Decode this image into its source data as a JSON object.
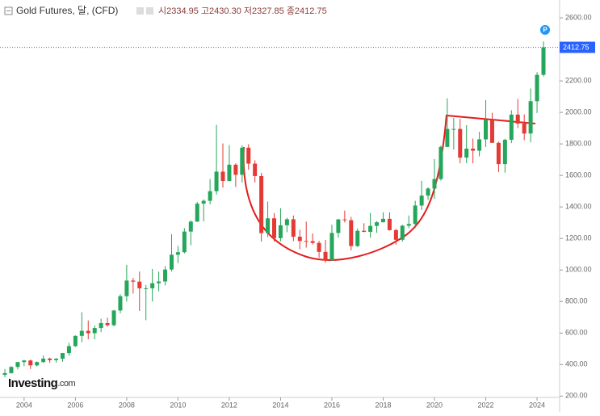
{
  "chart_data": {
    "type": "candlestick",
    "title": "Gold Futures, 달, (CFD)",
    "header_ohlc": "시2334.95 고2430.30 저2327.85 종2412.75",
    "logo": "Investing",
    "logo_suffix": ".com",
    "x": [
      2003.25,
      2003.5,
      2003.75,
      2004.0,
      2004.25,
      2004.5,
      2004.75,
      2005.0,
      2005.25,
      2005.5,
      2005.75,
      2006.0,
      2006.25,
      2006.5,
      2006.75,
      2007.0,
      2007.25,
      2007.5,
      2007.75,
      2008.0,
      2008.25,
      2008.5,
      2008.75,
      2009.0,
      2009.25,
      2009.5,
      2009.75,
      2010.0,
      2010.25,
      2010.5,
      2010.75,
      2011.0,
      2011.25,
      2011.5,
      2011.75,
      2012.0,
      2012.25,
      2012.5,
      2012.75,
      2013.0,
      2013.25,
      2013.5,
      2013.75,
      2014.0,
      2014.25,
      2014.5,
      2014.75,
      2015.0,
      2015.25,
      2015.5,
      2015.75,
      2016.0,
      2016.25,
      2016.5,
      2016.75,
      2017.0,
      2017.25,
      2017.5,
      2017.75,
      2018.0,
      2018.25,
      2018.5,
      2018.75,
      2019.0,
      2019.25,
      2019.5,
      2019.75,
      2020.0,
      2020.25,
      2020.5,
      2020.75,
      2021.0,
      2021.25,
      2021.5,
      2021.75,
      2022.0,
      2022.25,
      2022.5,
      2022.75,
      2023.0,
      2023.25,
      2023.5,
      2023.75,
      2024.0,
      2024.25
    ],
    "open": [
      335,
      346,
      385,
      416,
      426,
      395,
      416,
      438,
      428,
      437,
      473,
      517,
      582,
      614,
      599,
      632,
      663,
      650,
      743,
      834,
      933,
      926,
      884,
      884,
      916,
      927,
      1003,
      1097,
      1113,
      1244,
      1307,
      1421,
      1439,
      1500,
      1624,
      1565,
      1668,
      1604,
      1776,
      1675,
      1596,
      1234,
      1328,
      1202,
      1284,
      1322,
      1211,
      1184,
      1183,
      1172,
      1115,
      1061,
      1235,
      1321,
      1316,
      1152,
      1249,
      1242,
      1280,
      1303,
      1325,
      1253,
      1192,
      1281,
      1292,
      1409,
      1472,
      1517,
      1577,
      1781,
      1895,
      1895,
      1713,
      1770,
      1757,
      1829,
      1954,
      1807,
      1672,
      1826,
      1986,
      1929,
      1866,
      2071,
      2238
    ],
    "high": [
      372,
      390,
      417,
      430,
      432,
      420,
      457,
      445,
      441,
      474,
      538,
      585,
      732,
      680,
      648,
      691,
      697,
      747,
      846,
      1033,
      950,
      990,
      905,
      1007,
      990,
      1024,
      1227,
      1153,
      1266,
      1315,
      1432,
      1448,
      1577,
      1921,
      1803,
      1792,
      1677,
      1790,
      1798,
      1696,
      1616,
      1434,
      1361,
      1392,
      1332,
      1346,
      1255,
      1307,
      1232,
      1185,
      1191,
      1287,
      1325,
      1377,
      1337,
      1264,
      1297,
      1362,
      1310,
      1366,
      1365,
      1262,
      1287,
      1346,
      1439,
      1566,
      1525,
      1704,
      1789,
      2089,
      1965,
      1959,
      1919,
      1834,
      1877,
      2078,
      1998,
      1814,
      1833,
      2014,
      2085,
      1987,
      2152,
      2255,
      2450
    ],
    "low": [
      320,
      342,
      370,
      390,
      372,
      388,
      411,
      411,
      413,
      418,
      456,
      512,
      542,
      560,
      560,
      606,
      640,
      642,
      725,
      800,
      850,
      740,
      681,
      800,
      865,
      902,
      990,
      1044,
      1105,
      1157,
      1305,
      1309,
      1417,
      1478,
      1522,
      1563,
      1527,
      1555,
      1636,
      1555,
      1180,
      1208,
      1180,
      1182,
      1240,
      1183,
      1131,
      1142,
      1162,
      1077,
      1046,
      1058,
      1205,
      1302,
      1124,
      1146,
      1240,
      1205,
      1236,
      1302,
      1250,
      1160,
      1180,
      1266,
      1266,
      1381,
      1445,
      1451,
      1567,
      1780,
      1764,
      1677,
      1677,
      1677,
      1721,
      1781,
      1807,
      1622,
      1618,
      1805,
      1900,
      1823,
      1810,
      1996,
      2228
    ],
    "close": [
      346,
      385,
      416,
      426,
      395,
      416,
      438,
      428,
      437,
      473,
      517,
      582,
      614,
      599,
      632,
      663,
      650,
      743,
      834,
      933,
      926,
      884,
      884,
      916,
      927,
      1003,
      1097,
      1113,
      1244,
      1307,
      1421,
      1439,
      1500,
      1624,
      1565,
      1668,
      1604,
      1776,
      1675,
      1596,
      1234,
      1328,
      1202,
      1284,
      1322,
      1211,
      1184,
      1183,
      1172,
      1115,
      1061,
      1235,
      1321,
      1316,
      1152,
      1249,
      1242,
      1280,
      1303,
      1325,
      1253,
      1192,
      1281,
      1292,
      1409,
      1472,
      1517,
      1577,
      1781,
      1895,
      1895,
      1713,
      1770,
      1757,
      1829,
      1954,
      1807,
      1672,
      1826,
      1986,
      1929,
      1866,
      2071,
      2238,
      2412.75
    ],
    "up_color": "#26a65b",
    "down_color": "#e53935",
    "price_line_color": "#2962ff",
    "xlim": [
      2003.06,
      2024.88
    ],
    "xticks": [
      2004,
      2006,
      2008,
      2010,
      2012,
      2014,
      2016,
      2018,
      2020,
      2022,
      2024
    ],
    "ylim": [
      125,
      2713
    ],
    "yticks": [
      {
        "value": 200,
        "label": "200.00"
      },
      {
        "value": 400,
        "label": "400.00"
      },
      {
        "value": 600,
        "label": "600.00"
      },
      {
        "value": 800,
        "label": "800.00"
      },
      {
        "value": 1000,
        "label": "1000.00"
      },
      {
        "value": 1200,
        "label": "1200.00"
      },
      {
        "value": 1400,
        "label": "1400.00"
      },
      {
        "value": 1600,
        "label": "1600.00"
      },
      {
        "value": 1800,
        "label": "1800.00"
      },
      {
        "value": 2000,
        "label": "2000.00"
      },
      {
        "value": 2200,
        "label": "2200.00"
      },
      {
        "value": 2400,
        "label": "2400.00"
      },
      {
        "value": 2600,
        "label": "2600.00"
      }
    ],
    "grid": false
  }
}
